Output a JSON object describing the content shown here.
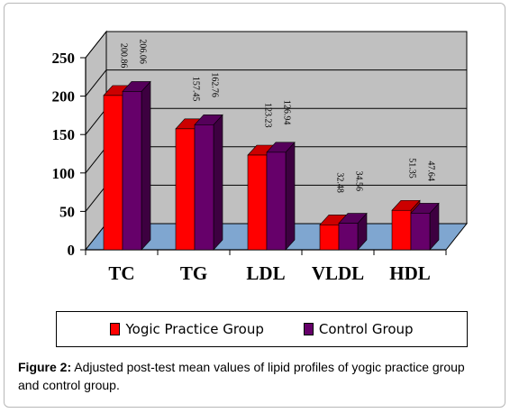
{
  "chart_data": {
    "type": "bar",
    "style": "3d-clustered",
    "categories": [
      "TC",
      "TG",
      "LDL",
      "VLDL",
      "HDL"
    ],
    "series": [
      {
        "name": "Yogic Practice Group",
        "values": [
          200.86,
          157.45,
          123.23,
          32.48,
          51.35
        ],
        "labels": [
          "200.86",
          "157.45",
          "123.23",
          "32.48",
          "51.35"
        ],
        "color": "#ff0000",
        "side_color": "#a30000",
        "top_color": "#cc0000"
      },
      {
        "name": "Control Group",
        "values": [
          206.06,
          162.76,
          126.94,
          34.56,
          47.64
        ],
        "labels": [
          "206.06",
          "162.76",
          "126.94",
          "34.56",
          "47.64"
        ],
        "color": "#66006a",
        "side_color": "#3d0040",
        "top_color": "#55005a"
      }
    ],
    "ylim": [
      0,
      250
    ],
    "yticks": [
      "0",
      "50",
      "100",
      "150",
      "200",
      "250"
    ],
    "ytick_values": [
      0,
      50,
      100,
      150,
      200,
      250
    ],
    "grid": true,
    "wall_color": "#c0c0c0",
    "floor_color": "#7fa6d0",
    "legend_placement": "bottom"
  },
  "caption": {
    "label": "Figure 2:",
    "text": " Adjusted post-test mean values of lipid profiles of yogic practice group and control group."
  }
}
